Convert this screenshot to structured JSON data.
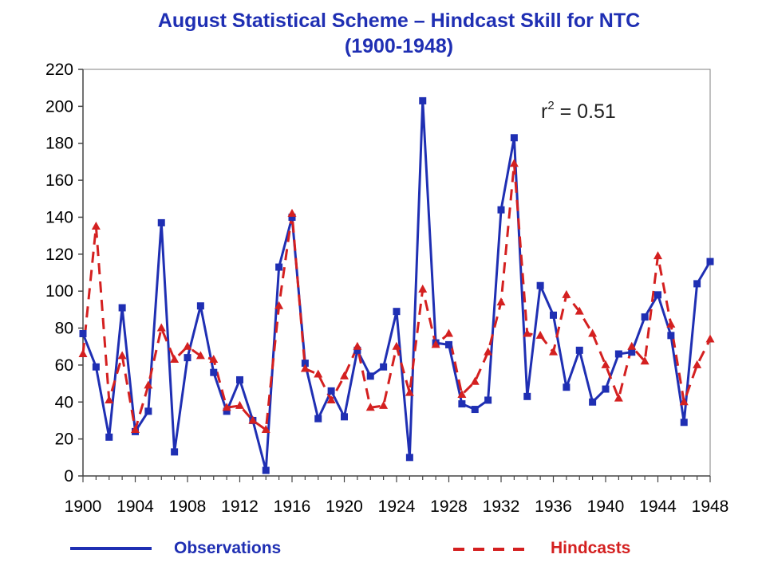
{
  "title_line1": "August Statistical Scheme – Hindcast Skill for NTC",
  "title_line2": "(1900-1948)",
  "annotation": {
    "base": "r",
    "exponent": "2",
    "text": " = 0.51"
  },
  "legend": {
    "observations": "Observations",
    "hindcasts": "Hindcasts"
  },
  "colors": {
    "observations": "#1f2fb3",
    "hindcasts": "#d42020",
    "title": "#1f2fb3",
    "grid": "#808080"
  },
  "chart_data": {
    "type": "line",
    "title": "August Statistical Scheme – Hindcast Skill for NTC (1900-1948)",
    "xlabel": "",
    "ylabel": "",
    "xlim": [
      1900,
      1948
    ],
    "ylim": [
      0,
      220
    ],
    "x_ticks": [
      "1900",
      "1904",
      "1908",
      "1912",
      "1916",
      "1920",
      "1924",
      "1928",
      "1932",
      "1936",
      "1940",
      "1944",
      "1948"
    ],
    "y_ticks": [
      "0",
      "20",
      "40",
      "60",
      "80",
      "100",
      "120",
      "140",
      "160",
      "180",
      "200",
      "220"
    ],
    "legend_position": "bottom",
    "grid": false,
    "x": [
      1900,
      1901,
      1902,
      1903,
      1904,
      1905,
      1906,
      1907,
      1908,
      1909,
      1910,
      1911,
      1912,
      1913,
      1914,
      1915,
      1916,
      1917,
      1918,
      1919,
      1920,
      1921,
      1922,
      1923,
      1924,
      1925,
      1926,
      1927,
      1928,
      1929,
      1930,
      1931,
      1932,
      1933,
      1934,
      1935,
      1936,
      1937,
      1938,
      1939,
      1940,
      1941,
      1942,
      1943,
      1944,
      1945,
      1946,
      1947,
      1948
    ],
    "series": [
      {
        "name": "Observations",
        "style": "solid",
        "marker": "square",
        "values": [
          77,
          59,
          21,
          91,
          24,
          35,
          137,
          13,
          64,
          92,
          56,
          35,
          52,
          30,
          3,
          113,
          140,
          61,
          31,
          46,
          32,
          68,
          54,
          59,
          89,
          10,
          203,
          72,
          71,
          39,
          36,
          41,
          144,
          183,
          43,
          103,
          87,
          48,
          68,
          40,
          47,
          66,
          67,
          86,
          98,
          76,
          29,
          104,
          116
        ]
      },
      {
        "name": "Hindcasts",
        "style": "dashed",
        "marker": "triangle",
        "values": [
          66,
          135,
          41,
          65,
          25,
          49,
          80,
          63,
          70,
          65,
          63,
          37,
          38,
          30,
          25,
          92,
          142,
          58,
          55,
          41,
          54,
          70,
          37,
          38,
          70,
          45,
          101,
          71,
          77,
          44,
          51,
          67,
          94,
          169,
          77,
          76,
          67,
          98,
          89,
          77,
          60,
          42,
          70,
          62,
          119,
          82,
          40,
          60,
          74
        ]
      }
    ]
  }
}
